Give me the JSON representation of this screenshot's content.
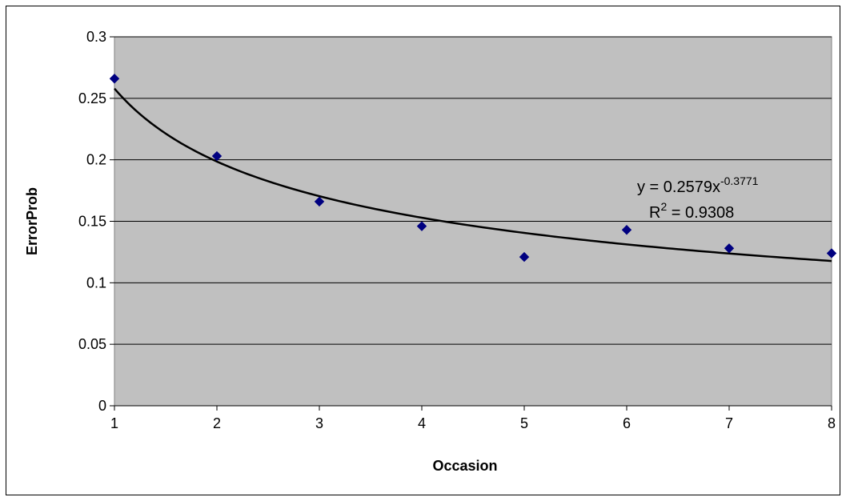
{
  "chart_data": {
    "type": "scatter",
    "title": "",
    "xlabel": "Occasion",
    "ylabel": "ErrorProb",
    "xlim": [
      1,
      8
    ],
    "ylim": [
      0,
      0.3
    ],
    "x_ticks": [
      "1",
      "2",
      "3",
      "4",
      "5",
      "6",
      "7",
      "8"
    ],
    "y_ticks": [
      "0",
      "0.05",
      "0.1",
      "0.15",
      "0.2",
      "0.25",
      "0.3"
    ],
    "grid": "horizontal",
    "legend": "none",
    "series": [
      {
        "points": [
          {
            "x": 1,
            "y": 0.266
          },
          {
            "x": 2,
            "y": 0.203
          },
          {
            "x": 3,
            "y": 0.166
          },
          {
            "x": 4,
            "y": 0.146
          },
          {
            "x": 5,
            "y": 0.121
          },
          {
            "x": 6,
            "y": 0.143
          },
          {
            "x": 7,
            "y": 0.128
          },
          {
            "x": 8,
            "y": 0.124
          }
        ]
      }
    ],
    "trendline": {
      "type": "power",
      "coefficient": 0.2579,
      "exponent": -0.3771,
      "equation_prefix": "y = 0.2579x",
      "equation_exponent": "-0.3771",
      "r2_prefix": "R",
      "r2_sup": "2",
      "r2_suffix": " = 0.9308"
    },
    "colors": {
      "plot_bg": "#c0c0c0",
      "marker": "#000080",
      "trendline": "#000000",
      "gridline": "#000000"
    }
  }
}
